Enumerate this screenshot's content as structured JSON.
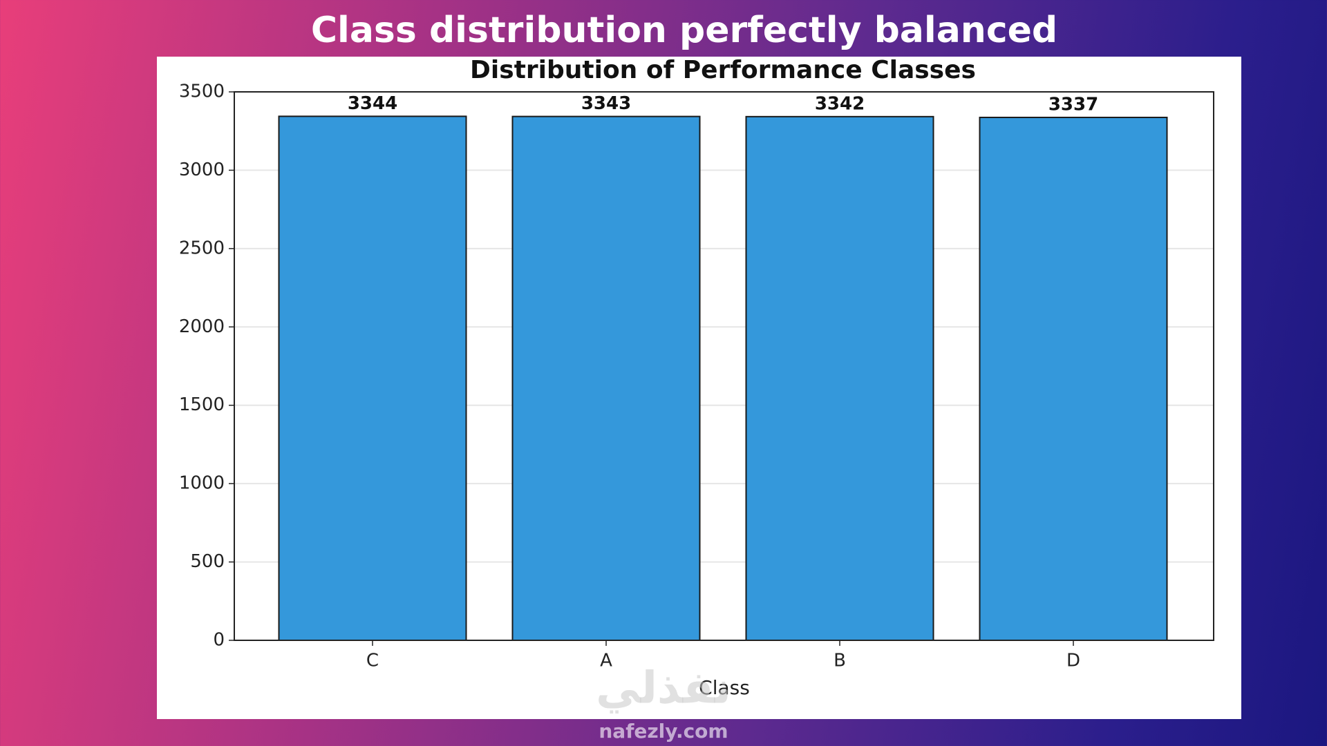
{
  "slide_title": "Class distribution perfectly balanced",
  "watermark": {
    "arabic": "نفذلي",
    "latin": "nafezly.com"
  },
  "chart_data": {
    "type": "bar",
    "title": "Distribution of Performance Classes",
    "x_label": "Class",
    "categories": [
      "C",
      "A",
      "B",
      "D"
    ],
    "values": [
      3344,
      3343,
      3342,
      3337
    ],
    "color": "#3498db",
    "edge_color": "#1a1a1a",
    "ylim": [
      0,
      3500
    ],
    "yticks": [
      0,
      500,
      1000,
      1500,
      2000,
      2500,
      3000,
      3500
    ],
    "grid": true
  }
}
